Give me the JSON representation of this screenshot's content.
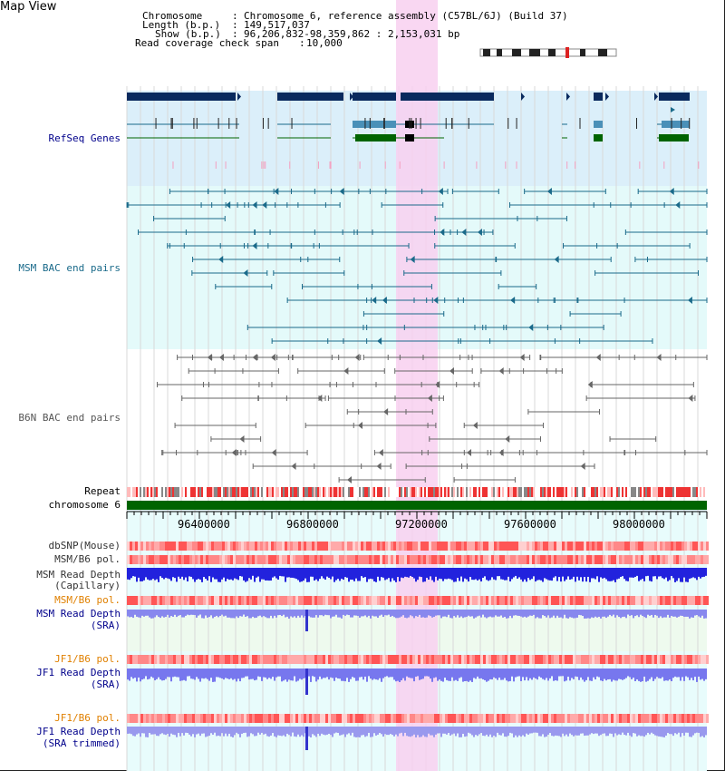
{
  "page_title": "Map View",
  "info": {
    "chromosome_label": "Chromosome",
    "chromosome_value": "Chromosome 6, reference assembly (C57BL/6J) (Build 37)",
    "length_label": "Length (b.p.)",
    "length_value": "149,517,037",
    "show_label": "Show (b.p.)",
    "show_value": "96,206,832-98,359,862 : 2,153,031 bp",
    "coverage_label": "Read coverage check span",
    "coverage_value": "10,000"
  },
  "tracks": {
    "refseq": "RefSeq Genes",
    "msm_bac": "MSM BAC end pairs",
    "b6n_bac": "B6N BAC end pairs",
    "repeat": "Repeat",
    "chromosome": "chromosome 6",
    "dbsnp": "dbSNP(Mouse)",
    "msm_b6_pol_1": "MSM/B6 pol.",
    "msm_depth_cap_1": "MSM Read Depth",
    "msm_depth_cap_2": "(Capillary)",
    "msm_b6_pol_2": "MSM/B6 pol.",
    "msm_depth_sra_1": "MSM Read Depth",
    "msm_depth_sra_2": "(SRA)",
    "jf1_b6_pol_1": "JF1/B6 pol.",
    "jf1_depth_1": "JF1 Read Depth",
    "jf1_depth_2": "(SRA)",
    "jf1_b6_pol_2": "JF1/B6 pol.",
    "jf1_trim_1": "JF1 Read Depth",
    "jf1_trim_2": "(SRA trimmed)"
  },
  "axis": {
    "ticks": [
      "96400000",
      "96800000",
      "97200000",
      "97600000",
      "98000000"
    ]
  },
  "colors": {
    "navy": "#0a2a5e",
    "teal": "#1a6a8a",
    "green": "#006400",
    "gray": "#666666",
    "highlight": "#f8d0f0",
    "refseq_bg": "#dbeffa",
    "msm_bg": "#e4fafa",
    "depth_blue": "#2222dd",
    "depth_light": "#7777ee"
  }
}
